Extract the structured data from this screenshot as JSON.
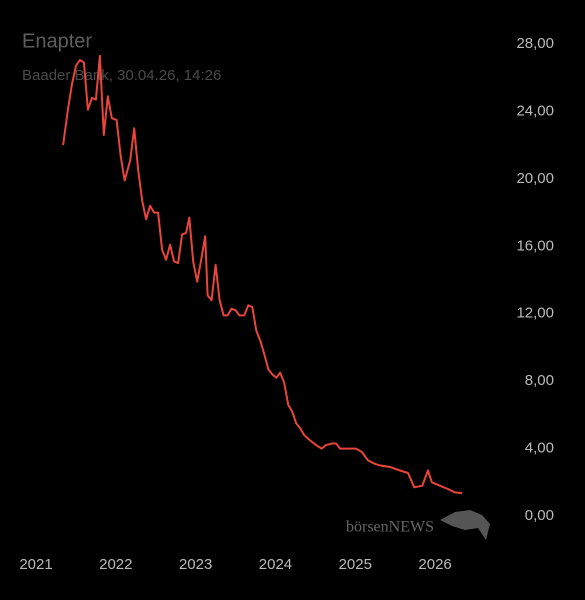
{
  "chart_data": {
    "type": "line",
    "title": "Enapter",
    "subtitle": "Baader Bank, 30.04.26, 14:26",
    "watermark": "börsenNEWS",
    "x": [
      2021.34,
      2021.4,
      2021.45,
      2021.5,
      2021.55,
      2021.6,
      2021.65,
      2021.7,
      2021.75,
      2021.8,
      2021.85,
      2021.9,
      2021.95,
      2022.01,
      2022.06,
      2022.11,
      2022.18,
      2022.23,
      2022.28,
      2022.33,
      2022.38,
      2022.43,
      2022.48,
      2022.53,
      2022.58,
      2022.63,
      2022.68,
      2022.73,
      2022.78,
      2022.83,
      2022.88,
      2022.92,
      2022.97,
      2023.02,
      2023.07,
      2023.12,
      2023.15,
      2023.2,
      2023.25,
      2023.3,
      2023.35,
      2023.4,
      2023.45,
      2023.5,
      2023.55,
      2023.61,
      2023.66,
      2023.71,
      2023.76,
      2023.81,
      2023.86,
      2023.91,
      2023.96,
      2024.01,
      2024.06,
      2024.11,
      2024.16,
      2024.21,
      2024.26,
      2024.31,
      2024.36,
      2024.43,
      2024.51,
      2024.58,
      2024.63,
      2024.71,
      2024.76,
      2024.81,
      2024.93,
      2025.01,
      2025.08,
      2025.16,
      2025.24,
      2025.31,
      2025.44,
      2025.56,
      2025.66,
      2025.74,
      2025.84,
      2025.91,
      2025.96,
      2026.06,
      2026.16,
      2026.25,
      2026.34
    ],
    "series": [
      {
        "color": "#e8453c",
        "values": [
          22.0,
          24.1,
          25.6,
          26.7,
          27.05,
          26.9,
          24.1,
          24.8,
          24.7,
          27.3,
          22.6,
          24.9,
          23.6,
          23.5,
          21.4,
          19.9,
          21.1,
          23.0,
          20.5,
          18.7,
          17.6,
          18.4,
          18.0,
          18.0,
          15.8,
          15.2,
          16.1,
          15.1,
          15.0,
          16.7,
          16.8,
          17.7,
          15.1,
          13.9,
          15.2,
          16.6,
          13.1,
          12.8,
          14.9,
          12.8,
          11.9,
          11.9,
          12.3,
          12.2,
          11.9,
          11.9,
          12.5,
          12.4,
          11.0,
          10.4,
          9.6,
          8.7,
          8.4,
          8.2,
          8.5,
          7.9,
          6.6,
          6.2,
          5.5,
          5.2,
          4.8,
          4.5,
          4.2,
          4.0,
          4.2,
          4.3,
          4.3,
          4.0,
          4.0,
          4.0,
          3.8,
          3.3,
          3.1,
          3.0,
          2.9,
          2.7,
          2.55,
          1.7,
          1.8,
          2.7,
          2.0,
          1.8,
          1.6,
          1.4,
          1.35
        ]
      }
    ],
    "xlim": [
      2021,
      2026.5
    ],
    "xticks": [
      2021,
      2022,
      2023,
      2024,
      2025,
      2026
    ],
    "ylim": [
      0,
      28
    ],
    "yticks": [
      {
        "value": 0,
        "label": "0,00"
      },
      {
        "value": 4,
        "label": "4,00"
      },
      {
        "value": 8,
        "label": "8,00"
      },
      {
        "value": 12,
        "label": "12,00"
      },
      {
        "value": 16,
        "label": "16,00"
      },
      {
        "value": 20,
        "label": "20,00"
      },
      {
        "value": 24,
        "label": "24,00"
      },
      {
        "value": 28,
        "label": "28,00"
      }
    ],
    "grid": false
  }
}
